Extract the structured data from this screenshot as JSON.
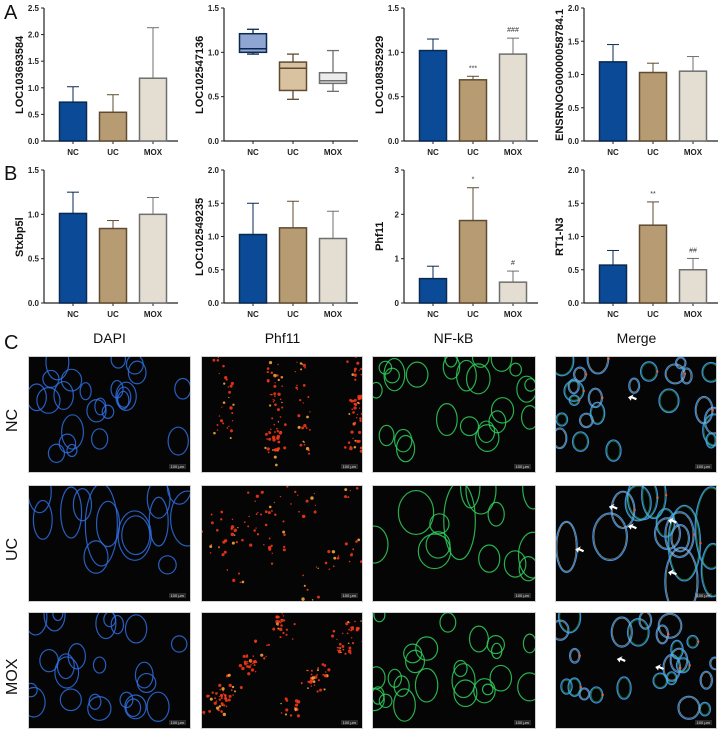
{
  "panels": {
    "A": "A",
    "B": "B",
    "C": "C"
  },
  "colors": {
    "NC": "#0b4a96",
    "UC": "#b79b73",
    "MOX": "#e4ddd1",
    "NC_edge": "#0a2850",
    "UC_edge": "#5e4b31",
    "MOX_edge": "#6f6f6f",
    "box_NC": "#8fa6d2",
    "box_UC": "#d9c2a0",
    "box_MOX": "#ececec"
  },
  "chart_data": [
    {
      "id": "A1",
      "type": "bar",
      "ylabel": "LOC103693584",
      "categories": [
        "NC",
        "UC",
        "MOX"
      ],
      "values": [
        0.73,
        0.54,
        1.18
      ],
      "errors": [
        0.29,
        0.33,
        0.95
      ],
      "ylim": [
        0,
        2.5
      ],
      "yticks": [
        "0.0",
        "0.5",
        "1.0",
        "1.5",
        "2.0",
        "2.5"
      ],
      "annotations": [
        "",
        "",
        ""
      ]
    },
    {
      "id": "A2",
      "type": "box",
      "ylabel": "LOC102547136",
      "categories": [
        "NC",
        "UC",
        "MOX"
      ],
      "box": [
        {
          "min": 0.98,
          "q1": 1.0,
          "median": 1.04,
          "q3": 1.21,
          "max": 1.26
        },
        {
          "min": 0.47,
          "q1": 0.57,
          "median": 0.82,
          "q3": 0.89,
          "max": 0.98
        },
        {
          "min": 0.56,
          "q1": 0.65,
          "median": 0.68,
          "q3": 0.77,
          "max": 1.02
        }
      ],
      "ylim": [
        0,
        1.5
      ],
      "yticks": [
        "0.0",
        "0.5",
        "1.0",
        "1.5"
      ]
    },
    {
      "id": "A3",
      "type": "bar",
      "ylabel": "LOC108352929",
      "categories": [
        "NC",
        "UC",
        "MOX"
      ],
      "values": [
        1.02,
        0.69,
        0.98
      ],
      "errors": [
        0.13,
        0.04,
        0.18
      ],
      "ylim": [
        0,
        1.5
      ],
      "yticks": [
        "0.0",
        "0.5",
        "1.0",
        "1.5"
      ],
      "annotations": [
        "",
        "***",
        "###"
      ]
    },
    {
      "id": "A4",
      "type": "bar",
      "ylabel": "ENSRNOG00000058784.1",
      "categories": [
        "NC",
        "UC",
        "MOX"
      ],
      "values": [
        1.19,
        1.03,
        1.05
      ],
      "errors": [
        0.26,
        0.14,
        0.22
      ],
      "ylim": [
        0,
        2.0
      ],
      "yticks": [
        "0.0",
        "0.5",
        "1.0",
        "1.5",
        "2.0"
      ],
      "annotations": [
        "",
        "",
        ""
      ]
    },
    {
      "id": "B1",
      "type": "bar",
      "ylabel": "Stxbp5l",
      "categories": [
        "NC",
        "UC",
        "MOX"
      ],
      "values": [
        1.01,
        0.84,
        1.0
      ],
      "errors": [
        0.24,
        0.09,
        0.19
      ],
      "ylim": [
        0,
        1.5
      ],
      "yticks": [
        "0.0",
        "0.5",
        "1.0",
        "1.5"
      ],
      "annotations": [
        "",
        "",
        ""
      ]
    },
    {
      "id": "B2",
      "type": "bar",
      "ylabel": "LOC102549235",
      "categories": [
        "NC",
        "UC",
        "MOX"
      ],
      "values": [
        1.03,
        1.13,
        0.97
      ],
      "errors": [
        0.47,
        0.4,
        0.41
      ],
      "ylim": [
        0,
        2.0
      ],
      "yticks": [
        "0.0",
        "0.5",
        "1.0",
        "1.5",
        "2.0"
      ],
      "annotations": [
        "",
        "",
        ""
      ]
    },
    {
      "id": "B3",
      "type": "bar",
      "ylabel": "Phf11",
      "categories": [
        "NC",
        "UC",
        "MOX"
      ],
      "values": [
        0.55,
        1.86,
        0.47
      ],
      "errors": [
        0.28,
        0.74,
        0.25
      ],
      "ylim": [
        0,
        3
      ],
      "yticks": [
        "0",
        "1",
        "2",
        "3"
      ],
      "annotations": [
        "",
        "*",
        "#"
      ]
    },
    {
      "id": "B4",
      "type": "bar",
      "ylabel": "RT1-N3",
      "categories": [
        "NC",
        "UC",
        "MOX"
      ],
      "values": [
        0.57,
        1.17,
        0.5
      ],
      "errors": [
        0.22,
        0.35,
        0.17
      ],
      "ylim": [
        0,
        2.0
      ],
      "yticks": [
        "0.0",
        "0.5",
        "1.0",
        "1.5",
        "2.0"
      ],
      "annotations": [
        "",
        "**",
        "##"
      ]
    }
  ],
  "microscopy": {
    "columns": [
      "DAPI",
      "Phf11",
      "NF-kB",
      "Merge"
    ],
    "rows": [
      "NC",
      "UC",
      "MOX"
    ],
    "scale_bar": "100 μm"
  }
}
